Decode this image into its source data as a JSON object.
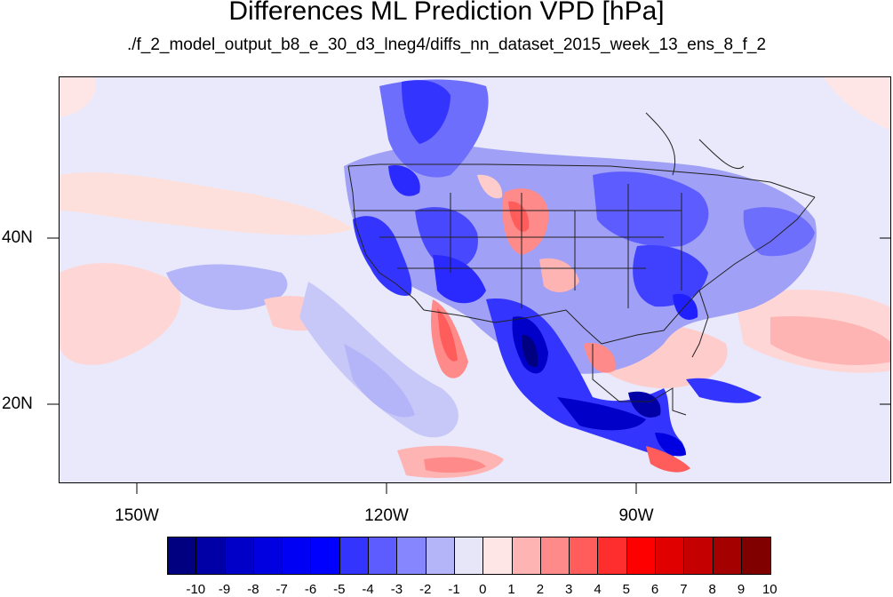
{
  "title": "Differences ML Prediction VPD [hPa]",
  "subtitle": "./f_2_model_output_b8_e_30_d3_lneg4/diffs_nn_dataset_2015_week_13_ens_8_f_2",
  "lon_labels": [
    "150W",
    "120W",
    "90W"
  ],
  "lat_labels": [
    "40N",
    "20N"
  ],
  "colorbar": {
    "labels": [
      "-10",
      "-9",
      "-8",
      "-7",
      "-6",
      "-5",
      "-4",
      "-3",
      "-2",
      "-1",
      "0",
      "1",
      "2",
      "3",
      "4",
      "5",
      "6",
      "7",
      "8",
      "9",
      "10"
    ],
    "colors": [
      "#000080",
      "#0000a6",
      "#0000c8",
      "#0000e0",
      "#0000f4",
      "#0000ff",
      "#3434ff",
      "#5c5cff",
      "#8686ff",
      "#b4b4f8",
      "#e6e6f8",
      "#ffe6e6",
      "#ffb4b4",
      "#ff8a8a",
      "#ff5c5c",
      "#ff2e2e",
      "#ff0000",
      "#e00000",
      "#c40000",
      "#a40000",
      "#800000"
    ]
  }
}
